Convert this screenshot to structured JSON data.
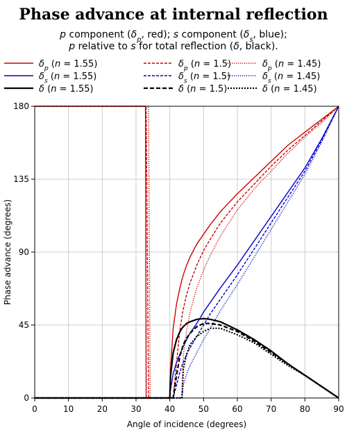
{
  "chart_data": {
    "type": "line",
    "title": "Phase advance at internal reflection",
    "subtitle_lines": [
      [
        {
          "t": "p",
          "i": true
        },
        {
          "t": " component ("
        },
        {
          "t": "δ",
          "i": true
        },
        {
          "t": "p",
          "sub": true,
          "i": true
        },
        {
          "t": ", red); "
        },
        {
          "t": "s",
          "i": true
        },
        {
          "t": " component ("
        },
        {
          "t": "δ",
          "i": true
        },
        {
          "t": "s",
          "sub": true,
          "i": true
        },
        {
          "t": ", blue);"
        }
      ],
      [
        {
          "t": "p",
          "i": true
        },
        {
          "t": " relative to "
        },
        {
          "t": "s",
          "i": true
        },
        {
          "t": " for total reflection ("
        },
        {
          "t": "δ",
          "i": true
        },
        {
          "t": ", black)."
        }
      ]
    ],
    "xlabel": "Angle of incidence (degrees)",
    "ylabel": "Phase advance (degrees)",
    "xlim": [
      0,
      90
    ],
    "ylim": [
      0,
      180
    ],
    "xticks": [
      0,
      10,
      20,
      30,
      40,
      50,
      60,
      70,
      80,
      90
    ],
    "yticks": [
      0,
      45,
      90,
      135,
      180
    ],
    "grid": true,
    "legend_placement": "top, above plot, 3 columns",
    "colors": {
      "p": "#cc0000",
      "s": "#0000cc",
      "delta": "#000000"
    },
    "x": [
      0,
      5,
      10,
      15,
      20,
      25,
      30,
      32,
      32.8,
      33.0,
      33.7,
      34.2,
      35,
      38,
      40,
      40.2,
      41,
      42,
      43,
      43.6,
      44,
      45,
      46,
      48,
      50,
      52,
      55,
      60,
      65,
      70,
      75,
      80,
      85,
      90
    ],
    "series": [
      {
        "name": "δp (n = 1.55)",
        "legend": [
          {
            "t": "δ",
            "i": true
          },
          {
            "t": "p",
            "sub": true,
            "i": true
          },
          {
            "t": " ("
          },
          {
            "t": "n",
            "i": true
          },
          {
            "t": " = 1.55)"
          }
        ],
        "color": "#cc0000",
        "dash": "solid",
        "width": 1.4,
        "values": [
          180,
          180,
          180,
          180,
          180,
          180,
          180,
          180,
          180,
          0,
          0,
          0,
          0,
          0,
          0,
          18,
          43,
          58,
          68,
          73,
          76,
          82,
          87,
          95,
          101,
          107,
          115,
          126,
          136,
          146,
          156,
          164,
          172,
          180
        ]
      },
      {
        "name": "δp (n = 1.5)",
        "legend": [
          {
            "t": "δ",
            "i": true
          },
          {
            "t": "p",
            "sub": true,
            "i": true
          },
          {
            "t": " ("
          },
          {
            "t": "n",
            "i": true
          },
          {
            "t": " = 1.5)"
          }
        ],
        "color": "#cc0000",
        "dash": "dashed",
        "width": 1.4,
        "values": [
          180,
          180,
          180,
          180,
          180,
          180,
          180,
          180,
          180,
          180,
          0,
          0,
          0,
          0,
          0,
          0,
          0,
          22,
          42,
          50,
          55,
          64,
          71,
          82,
          91,
          98,
          108,
          121,
          132,
          143,
          153,
          162,
          171,
          180
        ]
      },
      {
        "name": "δp (n = 1.45)",
        "legend": [
          {
            "t": "δ",
            "i": true
          },
          {
            "t": "p",
            "sub": true,
            "i": true
          },
          {
            "t": " ("
          },
          {
            "t": "n",
            "i": true
          },
          {
            "t": " = 1.45)"
          }
        ],
        "color": "#cc0000",
        "dash": "dotted",
        "width": 1.4,
        "values": [
          180,
          180,
          180,
          180,
          180,
          180,
          180,
          180,
          180,
          180,
          180,
          0,
          0,
          0,
          0,
          0,
          0,
          0,
          0,
          0,
          26,
          42,
          53,
          68,
          79,
          88,
          100,
          116,
          129,
          140,
          151,
          161,
          170,
          180
        ]
      },
      {
        "name": "δs (n = 1.55)",
        "legend": [
          {
            "t": "δ",
            "i": true
          },
          {
            "t": "s",
            "sub": true,
            "i": true
          },
          {
            "t": " ("
          },
          {
            "t": "n",
            "i": true
          },
          {
            "t": " = 1.55)"
          }
        ],
        "color": "#0000cc",
        "dash": "solid",
        "width": 1.4,
        "values": [
          0,
          0,
          0,
          0,
          0,
          0,
          0,
          0,
          0,
          0,
          0,
          0,
          0,
          0,
          0,
          5,
          15,
          22,
          27,
          30,
          32,
          36,
          40,
          46,
          53,
          59,
          68,
          82,
          97,
          112,
          127,
          142,
          160,
          180
        ]
      },
      {
        "name": "δs (n = 1.5)",
        "legend": [
          {
            "t": "δ",
            "i": true
          },
          {
            "t": "s",
            "sub": true,
            "i": true
          },
          {
            "t": " ("
          },
          {
            "t": "n",
            "i": true
          },
          {
            "t": " = 1.5)"
          }
        ],
        "color": "#0000cc",
        "dash": "dashed",
        "width": 1.4,
        "values": [
          0,
          0,
          0,
          0,
          0,
          0,
          0,
          0,
          0,
          0,
          0,
          0,
          0,
          0,
          0,
          0,
          0,
          8,
          16,
          20,
          22,
          27,
          31,
          38,
          45,
          52,
          61,
          76,
          92,
          108,
          124,
          140,
          159,
          180
        ]
      },
      {
        "name": "δs (n = 1.45)",
        "legend": [
          {
            "t": "δ",
            "i": true
          },
          {
            "t": "s",
            "sub": true,
            "i": true
          },
          {
            "t": " ("
          },
          {
            "t": "n",
            "i": true
          },
          {
            "t": " = 1.45)"
          }
        ],
        "color": "#0000cc",
        "dash": "dotted",
        "width": 1.4,
        "values": [
          0,
          0,
          0,
          0,
          0,
          0,
          0,
          0,
          0,
          0,
          0,
          0,
          0,
          0,
          0,
          0,
          0,
          0,
          0,
          0,
          8,
          15,
          20,
          28,
          36,
          43,
          54,
          70,
          87,
          104,
          121,
          138,
          158,
          180
        ]
      },
      {
        "name": "δ (n = 1.55)",
        "legend": [
          {
            "t": "δ",
            "i": true
          },
          {
            "t": " ("
          },
          {
            "t": "n",
            "i": true
          },
          {
            "t": " = 1.55)"
          }
        ],
        "color": "#000000",
        "dash": "solid",
        "width": 2.2,
        "values": [
          0,
          0,
          0,
          0,
          0,
          0,
          0,
          0,
          0,
          0,
          0,
          0,
          0,
          0,
          0,
          13,
          28,
          36,
          41,
          43,
          44,
          46,
          47,
          48.5,
          49,
          48.5,
          47,
          42,
          36,
          29,
          21,
          14,
          7,
          0
        ]
      },
      {
        "name": "δ (n = 1.5)",
        "legend": [
          {
            "t": "δ",
            "i": true
          },
          {
            "t": " ("
          },
          {
            "t": "n",
            "i": true
          },
          {
            "t": " = 1.5)"
          }
        ],
        "color": "#000000",
        "dash": "dashed",
        "width": 2.2,
        "values": [
          0,
          0,
          0,
          0,
          0,
          0,
          0,
          0,
          0,
          0,
          0,
          0,
          0,
          0,
          0,
          0,
          0,
          14,
          26,
          30,
          33,
          37,
          40,
          44,
          46,
          46,
          45,
          41,
          35,
          28,
          21,
          14,
          7,
          0
        ]
      },
      {
        "name": "δ (n = 1.45)",
        "legend": [
          {
            "t": "δ",
            "i": true
          },
          {
            "t": " ("
          },
          {
            "t": "n",
            "i": true
          },
          {
            "t": " = 1.45)"
          }
        ],
        "color": "#000000",
        "dash": "dotted",
        "width": 2.2,
        "values": [
          0,
          0,
          0,
          0,
          0,
          0,
          0,
          0,
          0,
          0,
          0,
          0,
          0,
          0,
          0,
          0,
          0,
          0,
          0,
          0,
          18,
          27,
          33,
          38,
          41,
          43,
          43,
          39,
          34,
          27,
          20,
          14,
          7,
          0
        ]
      }
    ]
  }
}
